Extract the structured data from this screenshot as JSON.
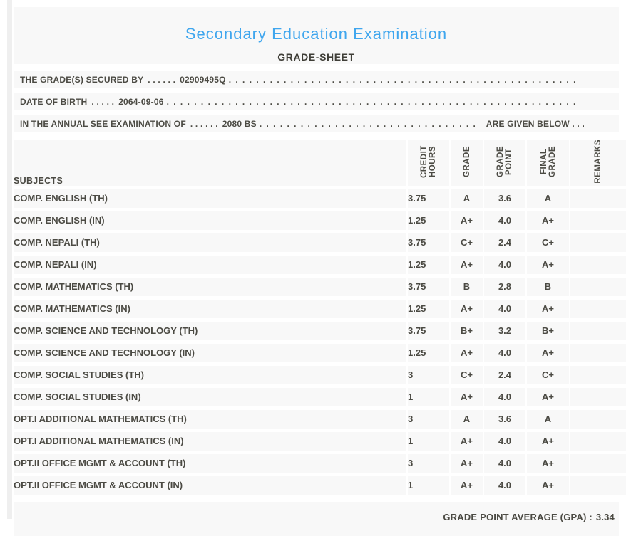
{
  "page": {
    "title": "Secondary Education Examination",
    "subtitle": "GRADE-SHEET"
  },
  "info_lines": [
    {
      "label": "THE GRADE(S) SECURED BY",
      "sep": ". . . . . .",
      "value": "02909495Q",
      "suffix": ""
    },
    {
      "label": "DATE OF BIRTH",
      "sep": ". . . . .",
      "value": "2064-09-06",
      "suffix": ""
    },
    {
      "label": "IN THE ANNUAL SEE EXAMINATION OF",
      "sep": ". . . . . .",
      "value": "2080 BS",
      "suffix": "ARE GIVEN BELOW . . ."
    }
  ],
  "table": {
    "columns": [
      {
        "key": "subject",
        "label": "SUBJECTS"
      },
      {
        "key": "credit",
        "label": "CREDIT HOURS"
      },
      {
        "key": "grade",
        "label": "GRADE"
      },
      {
        "key": "point",
        "label": "GRADE POINT"
      },
      {
        "key": "final",
        "label": "FINAL GRADE"
      },
      {
        "key": "remarks",
        "label": "REMARKS"
      }
    ],
    "rows": [
      {
        "subject": "COMP. ENGLISH (TH)",
        "credit": "3.75",
        "grade": "A",
        "point": "3.6",
        "final": "A",
        "remarks": ""
      },
      {
        "subject": "COMP. ENGLISH (IN)",
        "credit": "1.25",
        "grade": "A+",
        "point": "4.0",
        "final": "A+",
        "remarks": ""
      },
      {
        "subject": "COMP. NEPALI (TH)",
        "credit": "3.75",
        "grade": "C+",
        "point": "2.4",
        "final": "C+",
        "remarks": ""
      },
      {
        "subject": "COMP. NEPALI (IN)",
        "credit": "1.25",
        "grade": "A+",
        "point": "4.0",
        "final": "A+",
        "remarks": ""
      },
      {
        "subject": "COMP. MATHEMATICS (TH)",
        "credit": "3.75",
        "grade": "B",
        "point": "2.8",
        "final": "B",
        "remarks": ""
      },
      {
        "subject": "COMP. MATHEMATICS (IN)",
        "credit": "1.25",
        "grade": "A+",
        "point": "4.0",
        "final": "A+",
        "remarks": ""
      },
      {
        "subject": "COMP. SCIENCE AND TECHNOLOGY (TH)",
        "credit": "3.75",
        "grade": "B+",
        "point": "3.2",
        "final": "B+",
        "remarks": ""
      },
      {
        "subject": "COMP. SCIENCE AND TECHNOLOGY (IN)",
        "credit": "1.25",
        "grade": "A+",
        "point": "4.0",
        "final": "A+",
        "remarks": ""
      },
      {
        "subject": "COMP. SOCIAL STUDIES (TH)",
        "credit": "3",
        "grade": "C+",
        "point": "2.4",
        "final": "C+",
        "remarks": ""
      },
      {
        "subject": "COMP. SOCIAL STUDIES (IN)",
        "credit": "1",
        "grade": "A+",
        "point": "4.0",
        "final": "A+",
        "remarks": ""
      },
      {
        "subject": "OPT.I ADDITIONAL MATHEMATICS (TH)",
        "credit": "3",
        "grade": "A",
        "point": "3.6",
        "final": "A",
        "remarks": ""
      },
      {
        "subject": "OPT.I ADDITIONAL MATHEMATICS (IN)",
        "credit": "1",
        "grade": "A+",
        "point": "4.0",
        "final": "A+",
        "remarks": ""
      },
      {
        "subject": "OPT.II OFFICE MGMT & ACCOUNT (TH)",
        "credit": "3",
        "grade": "A+",
        "point": "4.0",
        "final": "A+",
        "remarks": ""
      },
      {
        "subject": "OPT.II OFFICE MGMT & ACCOUNT (IN)",
        "credit": "1",
        "grade": "A+",
        "point": "4.0",
        "final": "A+",
        "remarks": ""
      }
    ]
  },
  "footer": {
    "gpa_label": "GRADE POINT AVERAGE (GPA) :",
    "gpa_value": "3.34"
  },
  "colors": {
    "accent_blue": "#3FA6EE",
    "text": "#4B4A43",
    "band_gray": "#F8F8F8"
  }
}
